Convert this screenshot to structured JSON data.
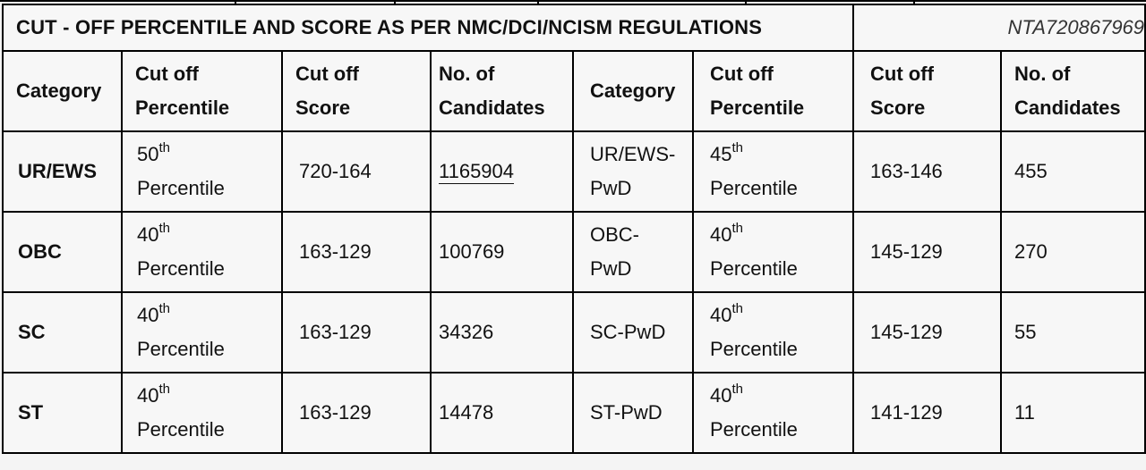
{
  "document": {
    "title": "CUT - OFF PERCENTILE AND SCORE AS PER NMC/DCI/NCISM REGULATIONS",
    "reference_code": "NTA720867969"
  },
  "headers": {
    "left": {
      "category": "Category",
      "percentile_line1": "Cut off",
      "percentile_line2": "Percentile",
      "score_line1": "Cut off",
      "score_line2": "Score",
      "candidates_line1": "No. of",
      "candidates_line2": "Candidates"
    },
    "right": {
      "category": "Category",
      "percentile_line1": "Cut off",
      "percentile_line2": "Percentile",
      "score_line1": "Cut off",
      "score_line2": "Score",
      "candidates_line1": "No. of",
      "candidates_line2": "Candidates"
    }
  },
  "rows": [
    {
      "left": {
        "category": "UR/EWS",
        "percentile_num": "50",
        "percentile_suffix": "th",
        "percentile_word": "Percentile",
        "score": "720-164",
        "candidates": "1165904"
      },
      "right": {
        "category_line1": "UR/EWS-",
        "category_line2": "PwD",
        "percentile_num": "45",
        "percentile_suffix": "th",
        "percentile_word": "Percentile",
        "score": "163-146",
        "candidates": "455"
      }
    },
    {
      "left": {
        "category": "OBC",
        "percentile_num": "40",
        "percentile_suffix": "th",
        "percentile_word": "Percentile",
        "score": "163-129",
        "candidates": "100769"
      },
      "right": {
        "category_line1": "OBC-",
        "category_line2": "PwD",
        "percentile_num": "40",
        "percentile_suffix": "th",
        "percentile_word": "Percentile",
        "score": "145-129",
        "candidates": "270"
      }
    },
    {
      "left": {
        "category": "SC",
        "percentile_num": "40",
        "percentile_suffix": "th",
        "percentile_word": "Percentile",
        "score": "163-129",
        "candidates": "34326"
      },
      "right": {
        "category_line1": "SC-PwD",
        "category_line2": "",
        "percentile_num": "40",
        "percentile_suffix": "th",
        "percentile_word": "Percentile",
        "score": "145-129",
        "candidates": "55"
      }
    },
    {
      "left": {
        "category": "ST",
        "percentile_num": "40",
        "percentile_suffix": "th",
        "percentile_word": "Percentile",
        "score": "163-129",
        "candidates": "14478"
      },
      "right": {
        "category_line1": "ST-PwD",
        "category_line2": "",
        "percentile_num": "40",
        "percentile_suffix": "th",
        "percentile_word": "Percentile",
        "score": "141-129",
        "candidates": "11"
      }
    }
  ]
}
